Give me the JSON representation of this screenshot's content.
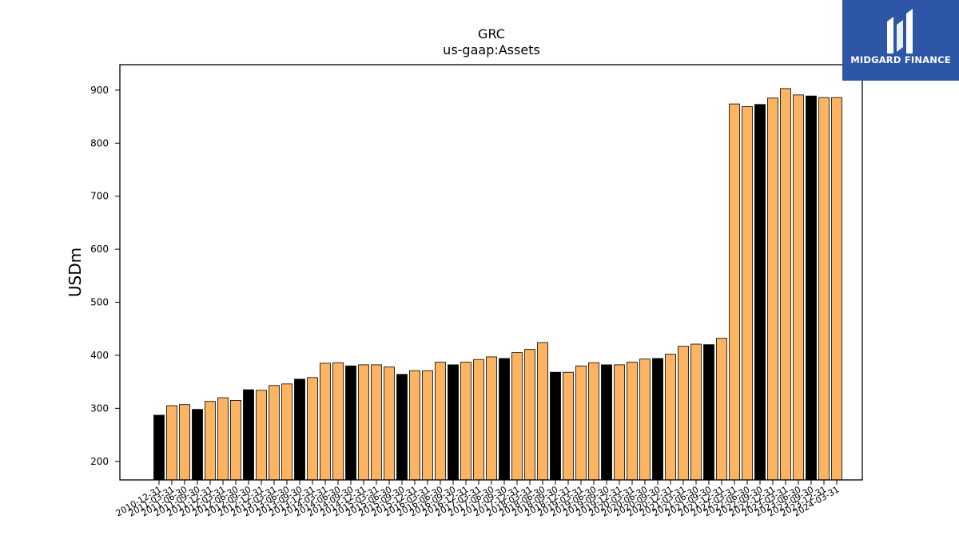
{
  "chart_data": {
    "type": "bar",
    "title": "GRC",
    "subtitle": "us-gaap:Assets",
    "xlabel": "",
    "ylabel": "USDm",
    "ylim": [
      165,
      948
    ],
    "yticks": [
      200,
      300,
      400,
      500,
      600,
      700,
      800,
      900
    ],
    "grid": false,
    "legend": "none",
    "colors": {
      "quarterly": "#fdb462",
      "annual": "#000000",
      "edge": "#000000"
    },
    "categories": [
      "2010-12-31",
      "2011-03-31",
      "2011-06-30",
      "2011-09-30",
      "2011-12-31",
      "2012-03-31",
      "2012-06-30",
      "2012-09-30",
      "2012-12-31",
      "2013-03-31",
      "2013-06-30",
      "2013-09-30",
      "2013-12-31",
      "2014-03-31",
      "2014-06-30",
      "2014-09-30",
      "2014-12-31",
      "2015-03-31",
      "2015-06-30",
      "2015-09-30",
      "2015-12-31",
      "2016-03-31",
      "2016-06-30",
      "2016-09-30",
      "2016-12-31",
      "2017-03-31",
      "2017-06-30",
      "2017-09-30",
      "2017-12-31",
      "2018-03-31",
      "2018-06-30",
      "2018-09-30",
      "2018-12-31",
      "2019-03-31",
      "2019-06-30",
      "2019-09-30",
      "2019-12-31",
      "2020-03-31",
      "2020-06-30",
      "2020-09-30",
      "2020-12-31",
      "2021-03-31",
      "2021-06-30",
      "2021-09-30",
      "2021-12-31",
      "2022-03-31",
      "2022-06-30",
      "2022-09-30",
      "2022-12-31",
      "2023-03-31",
      "2023-06-30",
      "2023-09-30",
      "2023-12-31",
      "2024-03-31"
    ],
    "values": [
      287,
      305,
      307,
      298,
      313,
      320,
      315,
      335,
      334,
      343,
      346,
      355,
      358,
      385,
      386,
      380,
      382,
      382,
      378,
      364,
      371,
      371,
      387,
      382,
      387,
      392,
      397,
      394,
      405,
      411,
      424,
      368,
      368,
      380,
      386,
      382,
      382,
      387,
      393,
      394,
      402,
      417,
      421,
      420,
      432,
      874,
      869,
      873,
      885,
      903,
      891,
      889,
      886,
      886
    ],
    "annual": [
      true,
      false,
      false,
      true,
      false,
      false,
      false,
      true,
      false,
      false,
      false,
      true,
      false,
      false,
      false,
      true,
      false,
      false,
      false,
      true,
      false,
      false,
      false,
      true,
      false,
      false,
      false,
      true,
      false,
      false,
      false,
      true,
      false,
      false,
      false,
      true,
      false,
      false,
      false,
      true,
      false,
      false,
      false,
      true,
      false,
      false,
      false,
      true,
      false,
      false,
      false,
      true,
      false,
      false
    ]
  },
  "logo": {
    "brand": "MIDGARD FINANCE"
  }
}
